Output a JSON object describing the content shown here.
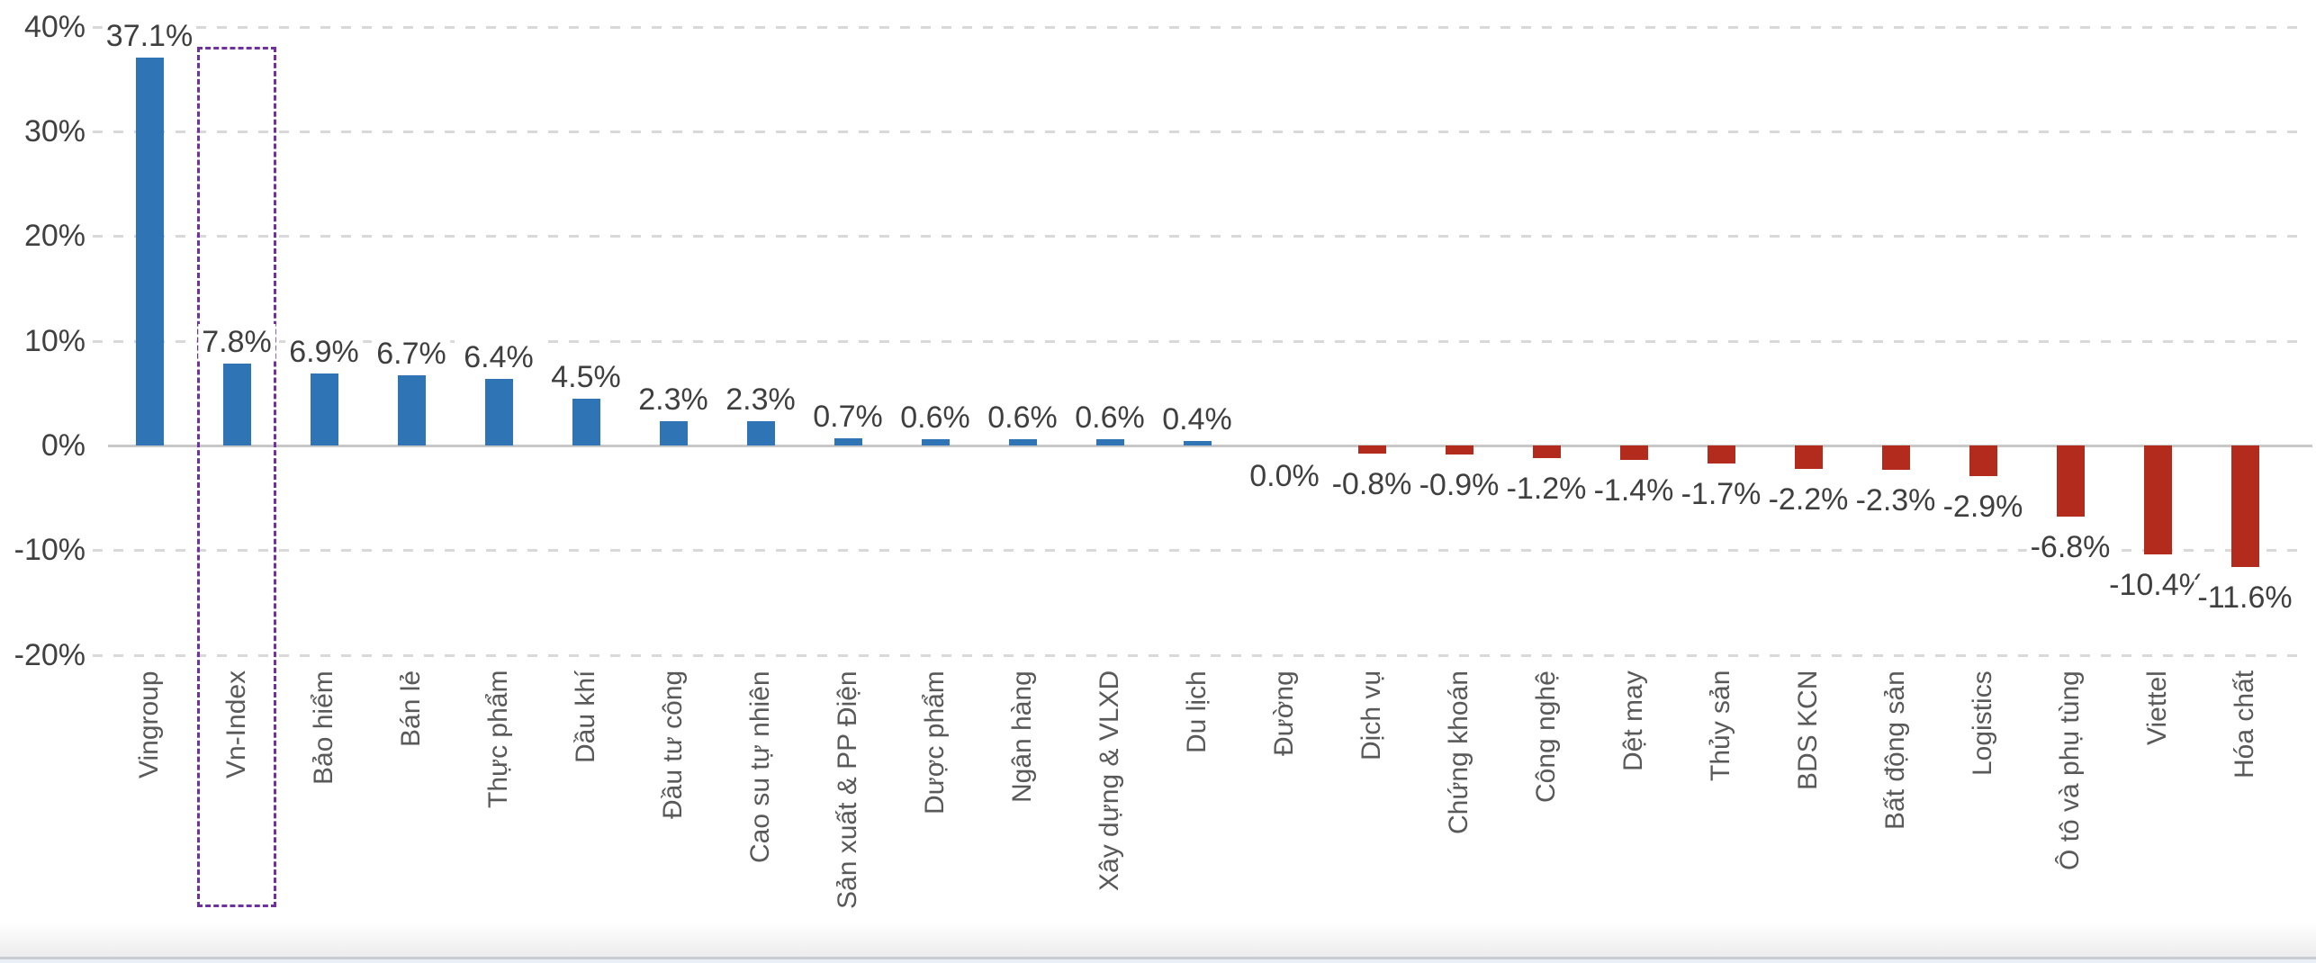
{
  "chart_data": {
    "type": "bar",
    "title": "",
    "xlabel": "",
    "ylabel": "",
    "categories": [
      "Vingroup",
      "Vn-Index",
      "Bảo hiểm",
      "Bán lẻ",
      "Thực phẩm",
      "Dầu khí",
      "Đầu tư công",
      "Cao su tự nhiên",
      "Sản xuất & PP Điện",
      "Dược phẩm",
      "Ngân hàng",
      "Xây dựng & VLXD",
      "Du lịch",
      "Đường",
      "Dịch vụ",
      "Chứng khoán",
      "Công nghệ",
      "Dệt may",
      "Thủy sản",
      "BDS KCN",
      "Bất động sản",
      "Logistics",
      "Ô tô và phụ tùng",
      "Viettel",
      "Hóa chất"
    ],
    "values": [
      37.1,
      7.8,
      6.9,
      6.7,
      6.4,
      4.5,
      2.3,
      2.3,
      0.7,
      0.6,
      0.6,
      0.6,
      0.4,
      0.0,
      -0.8,
      -0.9,
      -1.2,
      -1.4,
      -1.7,
      -2.2,
      -2.3,
      -2.9,
      -6.8,
      -10.4,
      -11.6
    ],
    "value_labels": [
      "37.1%",
      "7.8%",
      "6.9%",
      "6.7%",
      "6.4%",
      "4.5%",
      "2.3%",
      "2.3%",
      "0.7%",
      "0.6%",
      "0.6%",
      "0.6%",
      "0.4%",
      "0.0%",
      "-0.8%",
      "-0.9%",
      "-1.2%",
      "-1.4%",
      "-1.7%",
      "-2.2%",
      "-2.3%",
      "-2.9%",
      "-6.8%",
      "-10.4%",
      "-11.6%"
    ],
    "y_ticks": [
      {
        "value": 40,
        "label": "40%"
      },
      {
        "value": 30,
        "label": "30%"
      },
      {
        "value": 20,
        "label": "20%"
      },
      {
        "value": 10,
        "label": "10%"
      },
      {
        "value": 0,
        "label": "0%"
      },
      {
        "value": -10,
        "label": "-10%"
      },
      {
        "value": -20,
        "label": "-20%"
      }
    ],
    "ylim": [
      -20,
      40
    ],
    "grid": "horizontal-dashed",
    "legend_position": "none",
    "highlight": {
      "category": "Vn-Index",
      "style": "dashed-box"
    },
    "colors": {
      "positive_bar": "#2F74B5",
      "negative_bar": "#B22B1D",
      "highlight_box": "#7030A0",
      "gridline": "#D9D9D9",
      "zero_axis": "#C8C8C8",
      "value_label_text": "#3F3F3F",
      "tick_label_text": "#404040",
      "category_label_text": "#595959"
    }
  }
}
